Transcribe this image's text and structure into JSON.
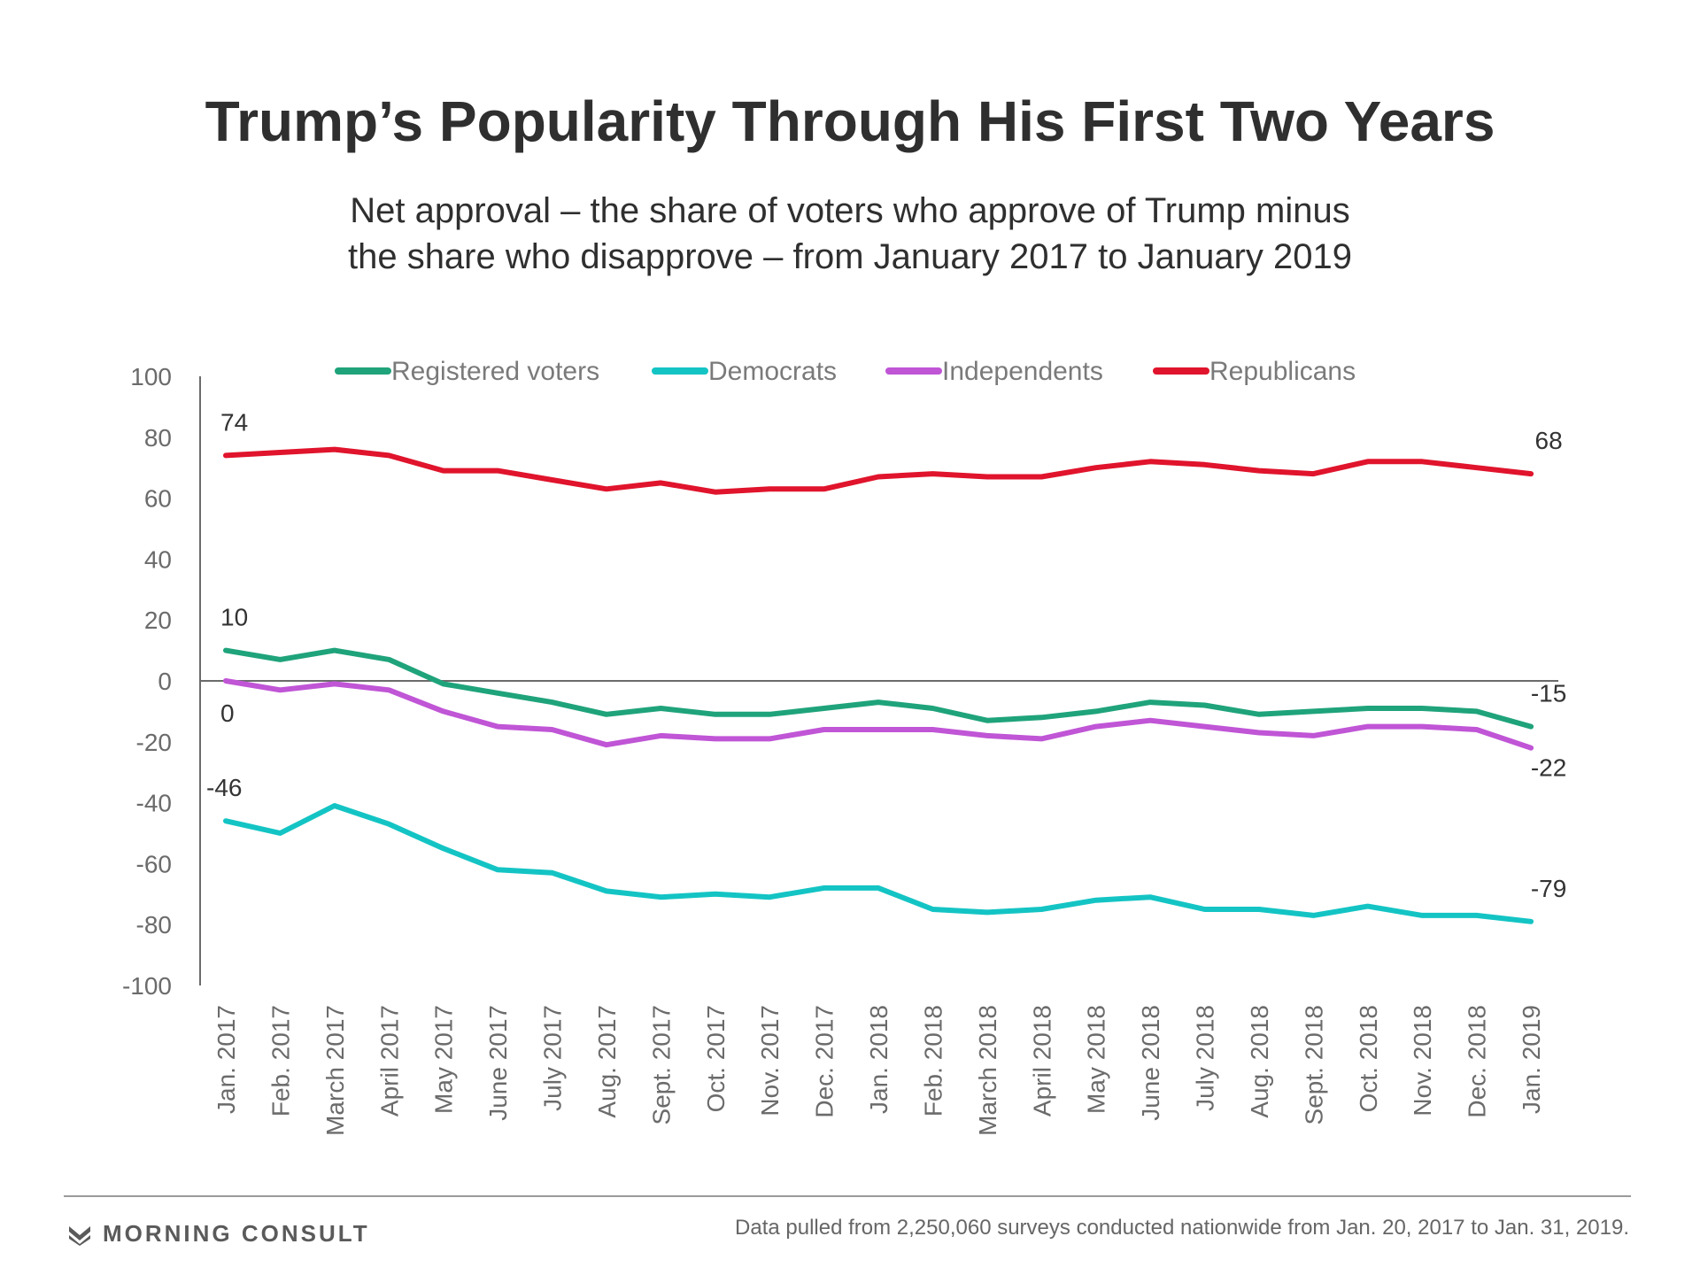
{
  "header": {
    "title": "Trump’s Popularity Through His First Two Years",
    "subtitle_line1": "Net approval – the share of voters who approve of Trump minus",
    "subtitle_line2": "the share who disapprove – from January 2017 to January 2019"
  },
  "footer": {
    "brand": "MORNING CONSULT",
    "source": "Data pulled from 2,250,060 surveys conducted nationwide from Jan. 20, 2017 to Jan. 31, 2019."
  },
  "chart_data": {
    "type": "line",
    "ylim": [
      -100,
      100
    ],
    "yticks": [
      100,
      80,
      60,
      40,
      20,
      0,
      -20,
      -40,
      -60,
      -80,
      -100
    ],
    "grid": false,
    "legend_position": "top",
    "categories": [
      "Jan. 2017",
      "Feb. 2017",
      "March 2017",
      "April 2017",
      "May 2017",
      "June 2017",
      "July 2017",
      "Aug. 2017",
      "Sept. 2017",
      "Oct. 2017",
      "Nov. 2017",
      "Dec. 2017",
      "Jan. 2018",
      "Feb. 2018",
      "March 2018",
      "April 2018",
      "May 2018",
      "June 2018",
      "July 2018",
      "Aug. 2018",
      "Sept. 2018",
      "Oct. 2018",
      "Nov. 2018",
      "Dec. 2018",
      "Jan. 2019"
    ],
    "series": [
      {
        "name": "Registered voters",
        "color": "#1fa37a",
        "values": [
          10,
          7,
          10,
          7,
          -1,
          -4,
          -7,
          -11,
          -9,
          -11,
          -11,
          -9,
          -7,
          -9,
          -13,
          -12,
          -10,
          -7,
          -8,
          -11,
          -10,
          -9,
          -9,
          -10,
          -15
        ],
        "start_label": "10",
        "end_label": "-15"
      },
      {
        "name": "Democrats",
        "color": "#14c4c4",
        "values": [
          -46,
          -50,
          -41,
          -47,
          -55,
          -62,
          -63,
          -69,
          -71,
          -70,
          -71,
          -68,
          -68,
          -75,
          -76,
          -75,
          -72,
          -71,
          -75,
          -75,
          -77,
          -74,
          -77,
          -77,
          -79
        ],
        "start_label": "-46",
        "end_label": "-79"
      },
      {
        "name": "Independents",
        "color": "#c055d6",
        "values": [
          0,
          -3,
          -1,
          -3,
          -10,
          -15,
          -16,
          -21,
          -18,
          -19,
          -19,
          -16,
          -16,
          -16,
          -18,
          -19,
          -15,
          -13,
          -15,
          -17,
          -18,
          -15,
          -15,
          -16,
          -22
        ],
        "start_label": "0",
        "end_label": "-22"
      },
      {
        "name": "Republicans",
        "color": "#e0142c",
        "values": [
          74,
          75,
          76,
          74,
          69,
          69,
          66,
          63,
          65,
          62,
          63,
          63,
          67,
          68,
          67,
          67,
          70,
          72,
          71,
          69,
          68,
          72,
          72,
          70,
          68
        ],
        "start_label": "74",
        "end_label": "68"
      }
    ]
  }
}
